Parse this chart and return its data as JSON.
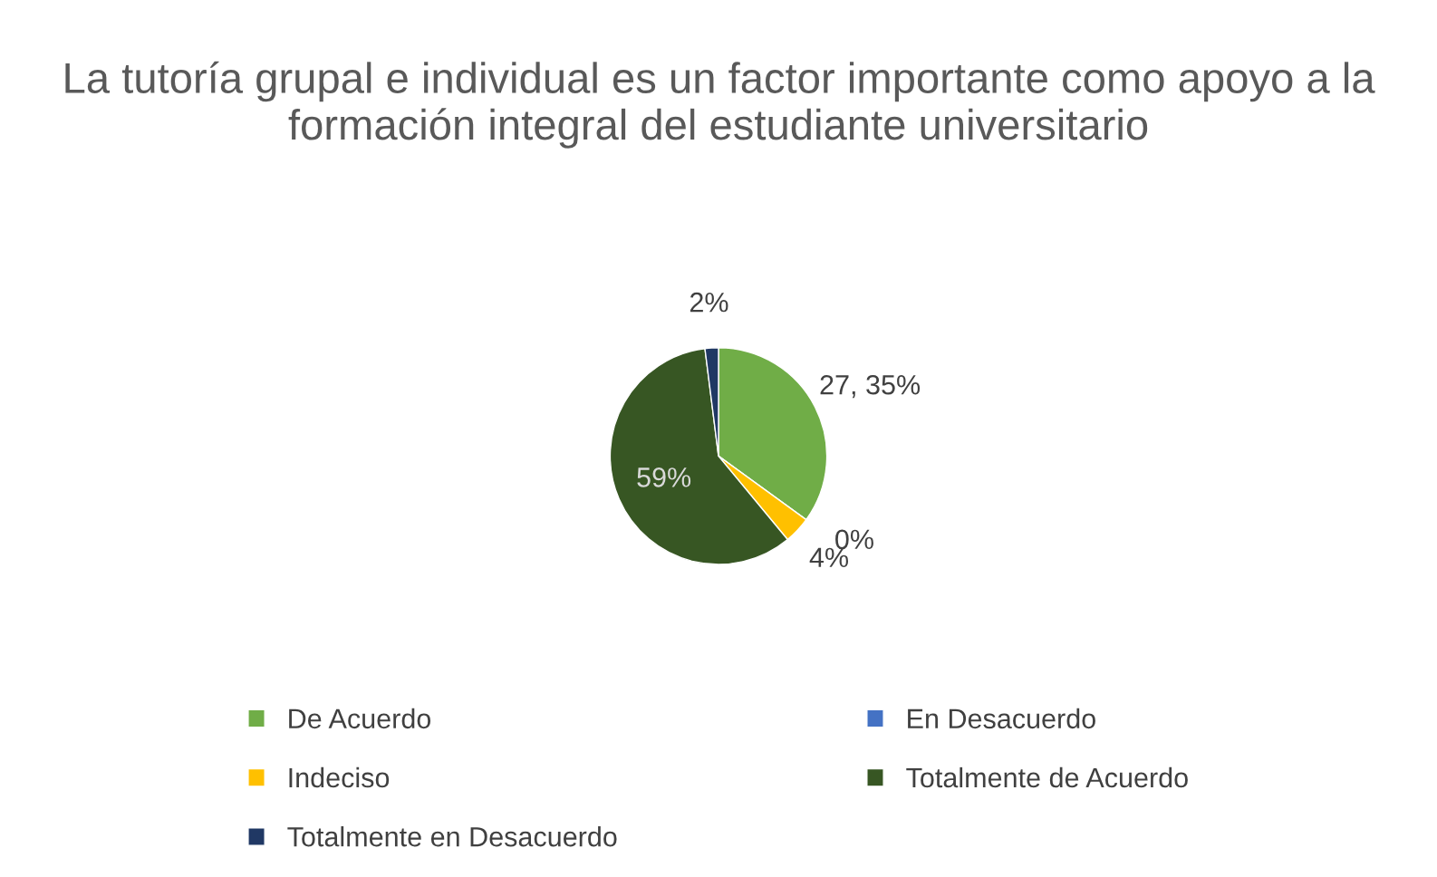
{
  "chart_data": {
    "type": "pie",
    "title": "La tutoría grupal e individual es un factor importante como apoyo a la formación integral del estudiante universitario",
    "categories": [
      "De Acuerdo",
      "En Desacuerdo",
      "Indeciso",
      "Totalmente de Acuerdo",
      "Totalmente en Desacuerdo"
    ],
    "values": [
      35,
      0,
      4,
      59,
      2
    ],
    "colors": [
      "#70ad47",
      "#4472c4",
      "#ffc000",
      "#375623",
      "#203864"
    ],
    "value_labels": [
      "27, 35%",
      "0%",
      "4%",
      "59%",
      "2%"
    ],
    "legend": "bottom"
  }
}
